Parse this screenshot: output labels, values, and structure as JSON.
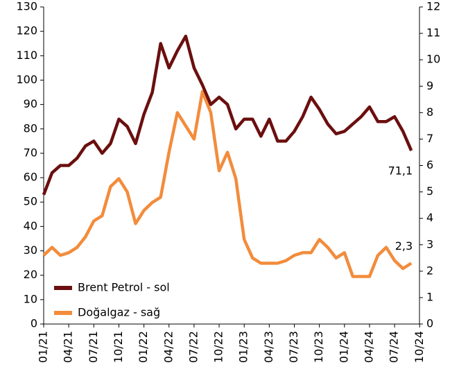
{
  "chart_data": {
    "type": "line",
    "x": [
      "01/21",
      "02/21",
      "03/21",
      "04/21",
      "05/21",
      "06/21",
      "07/21",
      "08/21",
      "09/21",
      "10/21",
      "11/21",
      "12/21",
      "01/22",
      "02/22",
      "03/22",
      "04/22",
      "05/22",
      "06/22",
      "07/22",
      "08/22",
      "09/22",
      "10/22",
      "11/22",
      "12/22",
      "01/23",
      "02/23",
      "03/23",
      "04/23",
      "05/23",
      "06/23",
      "07/23",
      "08/23",
      "09/23",
      "10/23",
      "11/23",
      "12/23",
      "01/24",
      "02/24",
      "03/24",
      "04/24",
      "05/24",
      "06/24",
      "07/24",
      "08/24",
      "09/24"
    ],
    "series": [
      {
        "name": "Brent Petrol - sol",
        "color": "#6b0f0f",
        "axis": "y",
        "values": [
          53,
          62,
          65,
          65,
          68,
          73,
          75,
          70,
          74,
          84,
          81,
          74,
          86,
          95,
          115,
          105,
          112,
          118,
          105,
          98,
          90,
          93,
          90,
          80,
          84,
          84,
          77,
          84,
          75,
          75,
          79,
          85,
          93,
          88,
          82,
          78,
          79,
          82,
          85,
          89,
          83,
          83,
          85,
          79,
          71.1
        ],
        "value_labels": [
          null,
          null,
          null,
          null,
          null,
          null,
          null,
          null,
          null,
          null,
          null,
          null,
          null,
          null,
          null,
          null,
          null,
          null,
          null,
          null,
          null,
          null,
          null,
          null,
          null,
          null,
          null,
          null,
          null,
          null,
          null,
          null,
          null,
          null,
          null,
          null,
          null,
          null,
          null,
          null,
          null,
          null,
          null,
          null,
          "71,1"
        ]
      },
      {
        "name": "Doğalgaz - sağ",
        "color": "#f28c3c",
        "axis": "y2",
        "values": [
          2.6,
          2.9,
          2.6,
          2.7,
          2.9,
          3.3,
          3.9,
          4.1,
          5.2,
          5.5,
          5.0,
          3.8,
          4.3,
          4.6,
          4.8,
          6.5,
          8.0,
          7.5,
          7.0,
          8.8,
          8.0,
          5.8,
          6.5,
          5.5,
          3.2,
          2.5,
          2.3,
          2.3,
          2.3,
          2.4,
          2.6,
          2.7,
          2.7,
          3.2,
          2.9,
          2.5,
          2.7,
          1.8,
          1.8,
          1.8,
          2.6,
          2.9,
          2.4,
          2.1,
          2.3
        ],
        "value_labels": [
          null,
          null,
          null,
          null,
          null,
          null,
          null,
          null,
          null,
          null,
          null,
          null,
          null,
          null,
          null,
          null,
          null,
          null,
          null,
          null,
          null,
          null,
          null,
          null,
          null,
          null,
          null,
          null,
          null,
          null,
          null,
          null,
          null,
          null,
          null,
          null,
          null,
          null,
          null,
          null,
          null,
          null,
          null,
          null,
          "2,3"
        ]
      }
    ],
    "xticks": [
      "01/21",
      "04/21",
      "07/21",
      "10/21",
      "01/22",
      "04/22",
      "07/22",
      "10/22",
      "01/23",
      "04/23",
      "07/23",
      "10/23",
      "01/24",
      "04/24",
      "07/24",
      "10/24"
    ],
    "ylim": [
      0,
      130
    ],
    "yticks": [
      0,
      10,
      20,
      30,
      40,
      50,
      60,
      70,
      80,
      90,
      100,
      110,
      120,
      130
    ],
    "y2lim": [
      0,
      12
    ],
    "y2ticks": [
      0,
      1,
      2,
      3,
      4,
      5,
      6,
      7,
      8,
      9,
      10,
      11,
      12
    ],
    "legend": "lower left"
  }
}
